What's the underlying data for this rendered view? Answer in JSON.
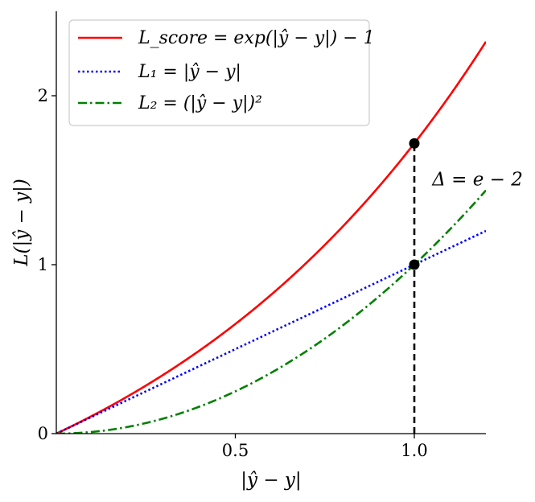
{
  "chart_data": {
    "type": "line",
    "xlabel": "|ŷ − y|",
    "ylabel": "L(|ŷ − y|)",
    "xlim": [
      0,
      1.2
    ],
    "ylim": [
      0,
      2.5
    ],
    "xticks": [
      {
        "value": 0.5,
        "label": "0.5"
      },
      {
        "value": 1.0,
        "label": "1.0"
      }
    ],
    "yticks": [
      {
        "value": 0,
        "label": "0"
      },
      {
        "value": 1,
        "label": "1"
      },
      {
        "value": 2,
        "label": "2"
      }
    ],
    "grid": false,
    "legend_position": "top-left",
    "series": [
      {
        "name": "L_score = exp(|ŷ − y|) − 1",
        "function": "exp_minus_one",
        "color": "#ff0000",
        "style": "solid"
      },
      {
        "name": "L₁ = |ŷ − y|",
        "function": "identity",
        "color": "#0000ff",
        "style": "dotted"
      },
      {
        "name": "L₂ = (|ŷ − y|)²",
        "function": "square",
        "color": "#008000",
        "style": "dashdot"
      }
    ],
    "points": [
      {
        "x": 1.0,
        "y": 1.718
      },
      {
        "x": 1.0,
        "y": 1.0
      }
    ],
    "vline": {
      "x": 1.0,
      "y0": 0,
      "y1": 1.718,
      "color": "#000000",
      "style": "dashed"
    },
    "annotation": {
      "text": "Δ = e − 2",
      "x": 1.05,
      "y": 1.47
    }
  }
}
